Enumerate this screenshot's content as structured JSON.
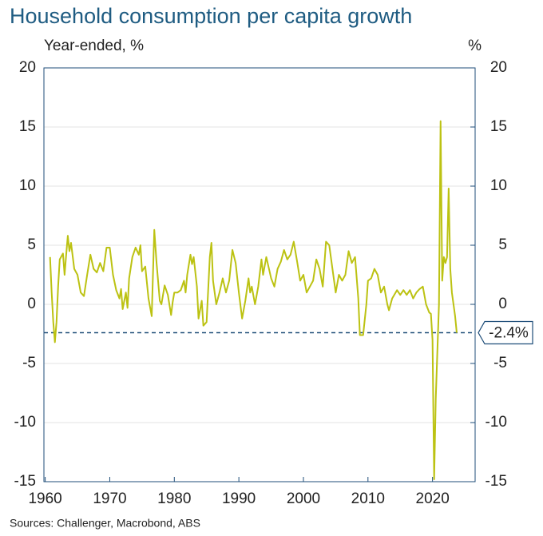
{
  "chart_data": {
    "type": "line",
    "title": "Household consumption per capita growth",
    "y_label": "Year-ended, %",
    "y2_label": "%",
    "source": "Sources: Challenger, Macrobond, ABS",
    "xlim": [
      1959.8,
      2026.6
    ],
    "xticks": [
      1960,
      1970,
      1980,
      1990,
      2000,
      2010,
      2020
    ],
    "ylim": [
      -15,
      20
    ],
    "yticks": [
      -15,
      -10,
      -5,
      0,
      5,
      10,
      15,
      20
    ],
    "y2lim": [
      -15,
      20
    ],
    "y2ticks": [
      -15,
      -10,
      -5,
      0,
      5,
      10,
      15,
      20
    ],
    "grid": true,
    "reference": {
      "value": -2.4,
      "label": "-2.4%",
      "color": "#1f4e79"
    },
    "series": [
      {
        "name": "Household consumption per capita growth",
        "color": "#bcc212",
        "x": [
          1960.75,
          1961.0,
          1961.25,
          1961.5,
          1961.75,
          1962.0,
          1962.25,
          1962.75,
          1963.0,
          1963.25,
          1963.5,
          1963.75,
          1964.0,
          1964.5,
          1965.0,
          1965.5,
          1966.0,
          1966.5,
          1967.0,
          1967.5,
          1968.0,
          1968.5,
          1969.0,
          1969.5,
          1970.0,
          1970.5,
          1971.0,
          1971.5,
          1971.75,
          1972.0,
          1972.5,
          1972.75,
          1973.0,
          1973.5,
          1974.0,
          1974.5,
          1974.75,
          1975.0,
          1975.5,
          1976.0,
          1976.5,
          1976.9,
          1977.25,
          1977.75,
          1978.0,
          1978.5,
          1979.0,
          1979.5,
          1979.75,
          1980.0,
          1980.5,
          1981.0,
          1981.5,
          1981.75,
          1982.0,
          1982.5,
          1982.75,
          1983.0,
          1983.5,
          1983.75,
          1984.25,
          1984.5,
          1985.0,
          1985.5,
          1985.75,
          1986.0,
          1986.5,
          1987.0,
          1987.5,
          1988.0,
          1988.5,
          1989.0,
          1989.5,
          1990.0,
          1990.5,
          1991.0,
          1991.5,
          1991.75,
          1992.0,
          1992.5,
          1993.0,
          1993.5,
          1993.75,
          1994.25,
          1994.75,
          1995.0,
          1995.5,
          1996.0,
          1996.5,
          1997.0,
          1997.5,
          1998.0,
          1998.5,
          1999.0,
          1999.5,
          2000.0,
          2000.5,
          2001.0,
          2001.5,
          2002.0,
          2002.5,
          2003.0,
          2003.5,
          2004.0,
          2004.5,
          2005.0,
          2005.5,
          2006.0,
          2006.5,
          2007.0,
          2007.5,
          2008.0,
          2008.5,
          2008.75,
          2009.25,
          2009.75,
          2010.0,
          2010.5,
          2011.0,
          2011.5,
          2012.0,
          2012.5,
          2013.0,
          2013.25,
          2013.75,
          2014.5,
          2015.0,
          2015.5,
          2016.0,
          2016.5,
          2017.0,
          2017.5,
          2018.0,
          2018.5,
          2019.0,
          2019.5,
          2019.75,
          2020.0,
          2020.25,
          2020.5,
          2020.75,
          2021.0,
          2021.25,
          2021.5,
          2021.75,
          2022.0,
          2022.25,
          2022.5,
          2022.75,
          2023.0,
          2023.5,
          2023.75
        ],
        "values": [
          4.0,
          1.0,
          -1.5,
          -3.2,
          -1.5,
          1.5,
          3.8,
          4.3,
          2.5,
          4.2,
          5.8,
          4.5,
          5.2,
          3.0,
          2.5,
          1.0,
          0.7,
          2.5,
          4.2,
          3.0,
          2.7,
          3.5,
          2.8,
          4.8,
          4.8,
          2.5,
          1.2,
          0.5,
          1.3,
          -0.4,
          1.0,
          -0.3,
          2.2,
          4.0,
          4.8,
          4.2,
          5.0,
          2.8,
          3.2,
          0.5,
          -1.0,
          6.3,
          3.5,
          0.3,
          0.0,
          1.6,
          0.8,
          -0.9,
          0.2,
          1.0,
          1.0,
          1.2,
          2.0,
          1.0,
          2.5,
          4.2,
          3.4,
          4.0,
          1.5,
          -1.2,
          0.3,
          -1.8,
          -1.5,
          4.0,
          5.2,
          2.0,
          0.0,
          1.0,
          2.2,
          1.0,
          2.0,
          4.6,
          3.5,
          1.0,
          -1.2,
          0.3,
          2.2,
          1.0,
          1.5,
          0.0,
          1.5,
          3.8,
          2.5,
          4.0,
          2.8,
          2.2,
          1.5,
          3.0,
          3.6,
          4.6,
          3.8,
          4.2,
          5.3,
          3.7,
          2.0,
          2.5,
          1.0,
          1.5,
          2.0,
          3.8,
          3.0,
          1.5,
          5.3,
          5.0,
          3.0,
          1.0,
          2.5,
          2.0,
          2.5,
          4.5,
          3.5,
          4.0,
          0.5,
          -2.6,
          -2.6,
          0.0,
          2.0,
          2.2,
          3.0,
          2.5,
          1.0,
          1.5,
          0.0,
          -0.5,
          0.5,
          1.2,
          0.8,
          1.2,
          0.8,
          1.2,
          0.5,
          1.0,
          1.3,
          1.5,
          0.0,
          -0.7,
          -0.8,
          -3.0,
          -14.8,
          -8.0,
          -4.0,
          0.0,
          15.5,
          2.0,
          4.0,
          3.5,
          4.0,
          9.8,
          3.0,
          1.0,
          -1.0,
          -2.4
        ]
      }
    ]
  }
}
